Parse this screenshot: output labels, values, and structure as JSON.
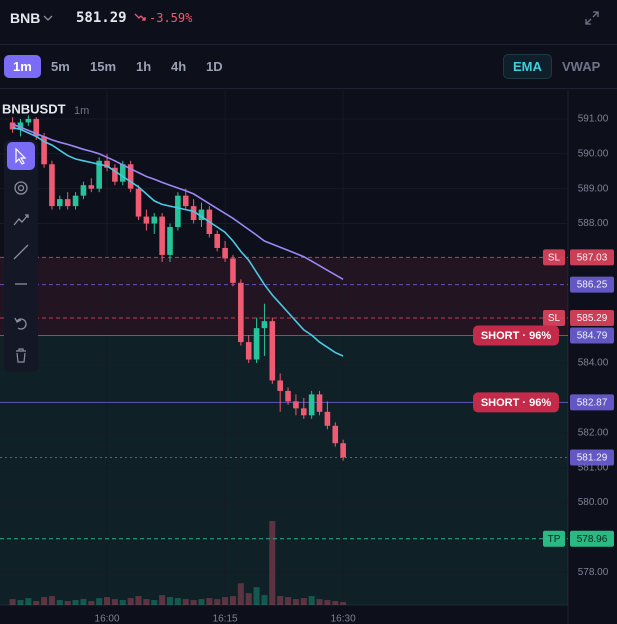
{
  "header": {
    "symbol": "BNB",
    "price": "581.29",
    "change": "-3.59%"
  },
  "timeframes": [
    {
      "label": "1m",
      "active": true
    },
    {
      "label": "5m",
      "active": false
    },
    {
      "label": "15m",
      "active": false
    },
    {
      "label": "1h",
      "active": false
    },
    {
      "label": "4h",
      "active": false
    },
    {
      "label": "1D",
      "active": false
    }
  ],
  "indicators": [
    {
      "label": "EMA",
      "active": true
    },
    {
      "label": "VWAP",
      "active": false
    }
  ],
  "chart_data": {
    "type": "candlestick",
    "symbol": "BNBUSDT",
    "interval": "1m",
    "categories": [
      null,
      null,
      null,
      null,
      null,
      null,
      null,
      null,
      null,
      null,
      null,
      null,
      "16:00",
      null,
      null,
      null,
      null,
      null,
      null,
      null,
      null,
      null,
      null,
      null,
      null,
      null,
      null,
      "16:15",
      null,
      null,
      null,
      null,
      null,
      null,
      null,
      null,
      null,
      null,
      null,
      null,
      null,
      null,
      "16:30"
    ],
    "open": [
      590.9,
      590.7,
      590.9,
      591.0,
      590.5,
      589.7,
      588.5,
      588.7,
      588.5,
      588.8,
      589.1,
      589.0,
      589.8,
      589.6,
      589.2,
      589.7,
      589.0,
      588.2,
      588.0,
      588.2,
      587.1,
      587.9,
      588.8,
      588.5,
      588.1,
      588.4,
      587.7,
      587.3,
      587.0,
      586.3,
      584.6,
      584.1,
      585.0,
      585.2,
      583.5,
      583.2,
      582.9,
      582.7,
      582.5,
      583.1,
      582.6,
      582.2,
      581.7
    ],
    "high": [
      591.05,
      591.0,
      591.1,
      591.05,
      590.6,
      589.8,
      588.8,
      588.9,
      588.9,
      589.2,
      589.3,
      589.9,
      590.0,
      589.7,
      589.8,
      589.8,
      589.1,
      588.4,
      588.3,
      588.3,
      588.0,
      588.9,
      589.0,
      588.7,
      588.6,
      588.5,
      587.8,
      587.5,
      587.1,
      586.4,
      584.8,
      585.3,
      585.7,
      585.3,
      583.7,
      583.3,
      583.1,
      583.0,
      583.2,
      583.2,
      582.9,
      582.3,
      581.8
    ],
    "low": [
      590.6,
      590.5,
      590.8,
      590.4,
      589.6,
      588.4,
      588.4,
      588.4,
      588.4,
      588.7,
      588.9,
      588.9,
      589.5,
      589.1,
      589.1,
      588.9,
      588.1,
      587.8,
      587.7,
      586.9,
      586.9,
      587.8,
      588.4,
      588.0,
      587.9,
      587.6,
      587.2,
      586.9,
      586.2,
      584.5,
      584.0,
      584.0,
      584.2,
      583.4,
      582.6,
      582.8,
      582.5,
      582.4,
      582.4,
      582.5,
      582.1,
      581.6,
      581.2
    ],
    "close": [
      590.7,
      590.9,
      591.0,
      590.5,
      589.7,
      588.5,
      588.7,
      588.5,
      588.8,
      589.1,
      589.0,
      589.8,
      589.6,
      589.2,
      589.7,
      589.0,
      588.2,
      588.0,
      588.2,
      587.1,
      587.9,
      588.8,
      588.5,
      588.1,
      588.4,
      587.7,
      587.3,
      587.0,
      586.3,
      584.6,
      584.1,
      585.0,
      585.2,
      583.5,
      583.2,
      582.9,
      582.7,
      582.5,
      583.1,
      582.6,
      582.2,
      581.7,
      581.29
    ],
    "volume": [
      6,
      5,
      7,
      4,
      8,
      9,
      5,
      4,
      5,
      6,
      4,
      7,
      8,
      6,
      5,
      7,
      9,
      6,
      5,
      10,
      8,
      7,
      6,
      5,
      6,
      7,
      6,
      8,
      9,
      22,
      12,
      18,
      10,
      85,
      9,
      8,
      6,
      7,
      9,
      6,
      5,
      4,
      3
    ],
    "up_color": "#26c49a",
    "down_color": "#ef5b72",
    "lines": [
      {
        "color": "#9b87f5",
        "values": [
          590.85,
          590.76,
          590.67,
          590.58,
          590.49,
          590.4,
          590.33,
          590.27,
          590.2,
          590.13,
          590.07,
          590.0,
          589.9,
          589.8,
          589.68,
          589.57,
          589.46,
          589.35,
          589.27,
          589.18,
          589.1,
          589.02,
          588.94,
          588.85,
          588.71,
          588.57,
          588.43,
          588.29,
          588.15,
          587.99,
          587.83,
          587.67,
          587.5,
          587.41,
          587.32,
          587.23,
          587.14,
          587.05,
          586.92,
          586.79,
          586.66,
          586.53,
          586.4
        ]
      },
      {
        "color": "#4cc9e6",
        "values": [
          590.75,
          590.7,
          590.6,
          590.5,
          590.35,
          590.25,
          590.1,
          589.95,
          589.85,
          589.8,
          589.75,
          589.7,
          589.65,
          589.5,
          589.35,
          589.2,
          589.05,
          588.85,
          588.65,
          588.55,
          588.5,
          588.45,
          588.4,
          588.35,
          588.2,
          588.05,
          587.9,
          587.75,
          587.5,
          587.2,
          586.95,
          586.6,
          586.25,
          585.95,
          585.7,
          585.45,
          585.2,
          584.95,
          584.8,
          584.6,
          584.45,
          584.3,
          584.2
        ]
      }
    ],
    "levels": [
      {
        "value": 587.03,
        "tag": "SL",
        "color": "#e0455d",
        "style": "dashed"
      },
      {
        "value": 586.25,
        "color": "#6b5fd6",
        "style": "dashed"
      },
      {
        "value": 585.29,
        "tag": "SL",
        "color": "#e0455d",
        "style": "dashed"
      },
      {
        "value": 584.79,
        "note": "SHORT · 96%",
        "color": "#6b5fd6",
        "style": "solid"
      },
      {
        "value": 582.87,
        "note": "SHORT · 96%",
        "color": "#6b5fd6",
        "style": "solid"
      },
      {
        "value": 581.29,
        "color": "#6b5fd6",
        "style": "dotted"
      },
      {
        "value": 578.96,
        "tag": "TP",
        "color": "#2ecc8f",
        "style": "dashed"
      }
    ],
    "ylim": [
      577.06,
      591.83
    ],
    "yticks": [
      {
        "value": 591,
        "label": "591.00"
      },
      {
        "value": 590,
        "label": "590.00"
      },
      {
        "value": 589,
        "label": "589.00"
      },
      {
        "value": 588,
        "label": "588.00"
      },
      {
        "value": 584,
        "label": "584.00"
      },
      {
        "value": 582,
        "label": "582.00"
      },
      {
        "value": 581,
        "label": "581.00"
      },
      {
        "value": 580,
        "label": "580.00"
      },
      {
        "value": 578,
        "label": "578.00"
      }
    ],
    "grid": true
  }
}
